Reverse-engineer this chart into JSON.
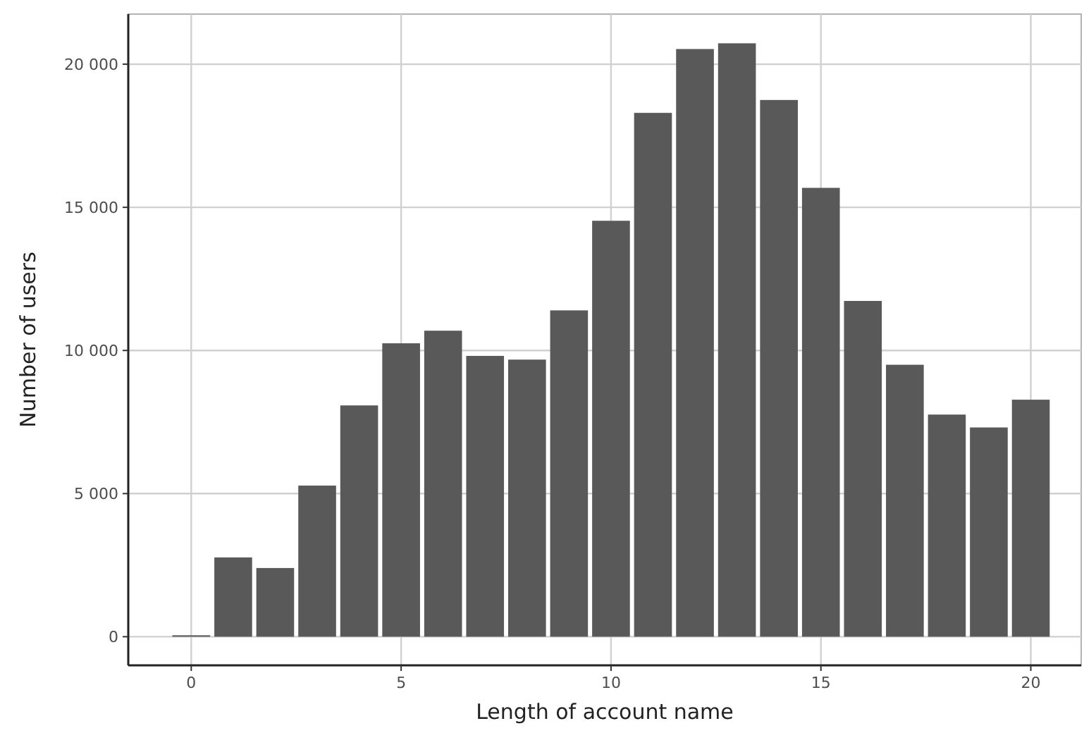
{
  "chart_data": {
    "type": "bar",
    "xlabel": "Length of account name",
    "ylabel": "Number of users",
    "x": [
      0,
      1,
      2,
      3,
      4,
      5,
      6,
      7,
      8,
      9,
      10,
      11,
      12,
      13,
      14,
      15,
      16,
      17,
      18,
      19,
      20
    ],
    "values": [
      50,
      2770,
      2400,
      5280,
      8080,
      10250,
      10690,
      9810,
      9680,
      11400,
      14530,
      18300,
      20530,
      20730,
      18750,
      15680,
      11730,
      9500,
      7760,
      7310,
      8280
    ],
    "color": "#595959",
    "xlim": [
      -1.5,
      21.2
    ],
    "xticks": [
      0,
      5,
      10,
      15,
      20
    ],
    "ylim": [
      -1000,
      21750
    ],
    "yticks": [
      0,
      {
        "value": 5000,
        "label": "5 000"
      },
      {
        "value": 10000,
        "label": "10 000"
      },
      {
        "value": 15000,
        "label": "15 000"
      },
      {
        "value": 20000,
        "label": "20 000"
      }
    ],
    "grid": true
  }
}
